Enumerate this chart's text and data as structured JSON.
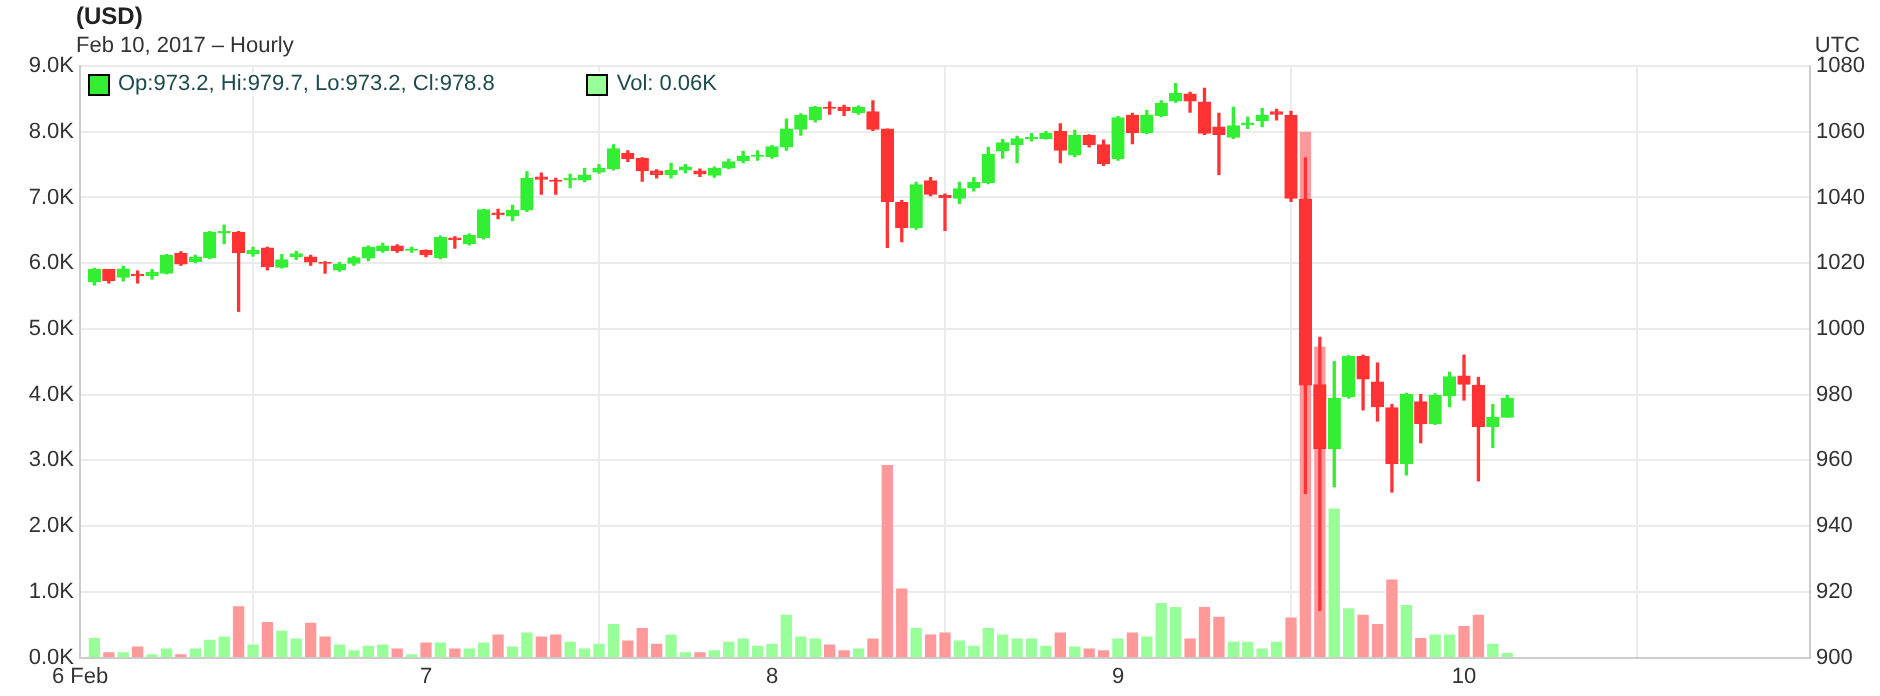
{
  "chart_data": {
    "type": "candlestick",
    "title": "(USD)",
    "subtitle": "Feb 10, 2017 – Hourly",
    "annotations": [
      "UTC"
    ],
    "x": [
      "2017-02-06T01:00",
      "2017-02-06T02:00",
      "2017-02-06T03:00",
      "2017-02-06T04:00",
      "2017-02-06T05:00",
      "2017-02-06T06:00",
      "2017-02-06T07:00",
      "2017-02-06T08:00",
      "2017-02-06T09:00",
      "2017-02-06T10:00",
      "2017-02-06T11:00",
      "2017-02-06T12:00",
      "2017-02-06T13:00",
      "2017-02-06T14:00",
      "2017-02-06T15:00",
      "2017-02-06T16:00",
      "2017-02-06T17:00",
      "2017-02-06T18:00",
      "2017-02-06T19:00",
      "2017-02-06T20:00",
      "2017-02-06T21:00",
      "2017-02-06T22:00",
      "2017-02-06T23:00",
      "2017-02-07T00:00",
      "2017-02-07T01:00",
      "2017-02-07T02:00",
      "2017-02-07T03:00",
      "2017-02-07T04:00",
      "2017-02-07T05:00",
      "2017-02-07T06:00",
      "2017-02-07T07:00",
      "2017-02-07T08:00",
      "2017-02-07T09:00",
      "2017-02-07T10:00",
      "2017-02-07T11:00",
      "2017-02-07T12:00",
      "2017-02-07T13:00",
      "2017-02-07T14:00",
      "2017-02-07T15:00",
      "2017-02-07T16:00",
      "2017-02-07T17:00",
      "2017-02-07T18:00",
      "2017-02-07T19:00",
      "2017-02-07T20:00",
      "2017-02-07T21:00",
      "2017-02-07T22:00",
      "2017-02-07T23:00",
      "2017-02-08T00:00",
      "2017-02-08T01:00",
      "2017-02-08T02:00",
      "2017-02-08T03:00",
      "2017-02-08T04:00",
      "2017-02-08T05:00",
      "2017-02-08T06:00",
      "2017-02-08T07:00",
      "2017-02-08T08:00",
      "2017-02-08T09:00",
      "2017-02-08T10:00",
      "2017-02-08T11:00",
      "2017-02-08T12:00",
      "2017-02-08T13:00",
      "2017-02-08T14:00",
      "2017-02-08T15:00",
      "2017-02-08T16:00",
      "2017-02-08T17:00",
      "2017-02-08T18:00",
      "2017-02-08T19:00",
      "2017-02-08T20:00",
      "2017-02-08T21:00",
      "2017-02-08T22:00",
      "2017-02-08T23:00",
      "2017-02-09T00:00",
      "2017-02-09T01:00",
      "2017-02-09T02:00",
      "2017-02-09T03:00",
      "2017-02-09T04:00",
      "2017-02-09T05:00",
      "2017-02-09T06:00",
      "2017-02-09T07:00",
      "2017-02-09T08:00",
      "2017-02-09T09:00",
      "2017-02-09T10:00",
      "2017-02-09T11:00",
      "2017-02-09T12:00",
      "2017-02-09T13:00",
      "2017-02-09T14:00",
      "2017-02-09T15:00",
      "2017-02-09T16:00",
      "2017-02-09T17:00",
      "2017-02-09T18:00",
      "2017-02-09T19:00",
      "2017-02-09T20:00",
      "2017-02-09T21:00",
      "2017-02-09T22:00",
      "2017-02-09T23:00",
      "2017-02-10T00:00",
      "2017-02-10T01:00",
      "2017-02-10T02:00",
      "2017-02-10T03:00"
    ],
    "xlim": [
      "2017-02-06",
      "2017-02-11"
    ],
    "xticks": [
      {
        "value": "2017-02-06",
        "label": "6 Feb"
      },
      {
        "value": "2017-02-07",
        "label": "7"
      },
      {
        "value": "2017-02-08",
        "label": "8"
      },
      {
        "value": "2017-02-09",
        "label": "9"
      },
      {
        "value": "2017-02-10",
        "label": "10"
      }
    ],
    "ylim": [
      0,
      9
    ],
    "yticks": [
      {
        "value": 0,
        "label": "0.0K"
      },
      {
        "value": 1,
        "label": "1.0K"
      },
      {
        "value": 2,
        "label": "2.0K"
      },
      {
        "value": 3,
        "label": "3.0K"
      },
      {
        "value": 4,
        "label": "4.0K"
      },
      {
        "value": 5,
        "label": "5.0K"
      },
      {
        "value": 6,
        "label": "6.0K"
      },
      {
        "value": 7,
        "label": "7.0K"
      },
      {
        "value": 8,
        "label": "8.0K"
      },
      {
        "value": 9,
        "label": "9.0K"
      }
    ],
    "y2lim": [
      900,
      1080
    ],
    "y2ticks": [
      900,
      920,
      940,
      960,
      980,
      1000,
      1020,
      1040,
      1060,
      1080
    ],
    "grid": true,
    "legend": "top left",
    "series": [
      {
        "type": "candlestick",
        "name": "Op:973.2, Hi:979.7, Lo:973.2, Cl:978.8",
        "axis": "y2",
        "color": "#33ee33",
        "colors": [
          "#33ee33",
          "#ff3333",
          "#33ee33",
          "#ff3333",
          "#33ee33",
          "#33ee33",
          "#ff3333",
          "#33ee33",
          "#33ee33",
          "#33ee33",
          "#ff3333",
          "#33ee33",
          "#ff3333",
          "#33ee33",
          "#33ee33",
          "#ff3333",
          "#ff3333",
          "#33ee33",
          "#33ee33",
          "#33ee33",
          "#33ee33",
          "#ff3333",
          "#33ee33",
          "#ff3333",
          "#33ee33",
          "#ff3333",
          "#33ee33",
          "#33ee33",
          "#ff3333",
          "#33ee33",
          "#33ee33",
          "#ff3333",
          "#ff3333",
          "#33ee33",
          "#33ee33",
          "#33ee33",
          "#33ee33",
          "#ff3333",
          "#ff3333",
          "#ff3333",
          "#33ee33",
          "#33ee33",
          "#ff3333",
          "#33ee33",
          "#33ee33",
          "#33ee33",
          "#33ee33",
          "#33ee33",
          "#33ee33",
          "#33ee33",
          "#33ee33",
          "#ff3333",
          "#ff3333",
          "#33ee33",
          "#ff3333",
          "#ff3333",
          "#ff3333",
          "#33ee33",
          "#ff3333",
          "#ff3333",
          "#33ee33",
          "#33ee33",
          "#33ee33",
          "#33ee33",
          "#33ee33",
          "#33ee33",
          "#33ee33",
          "#ff3333",
          "#33ee33",
          "#ff3333",
          "#ff3333",
          "#33ee33",
          "#ff3333",
          "#33ee33",
          "#33ee33",
          "#33ee33",
          "#ff3333",
          "#ff3333",
          "#ff3333",
          "#33ee33",
          "#33ee33",
          "#33ee33",
          "#ff3333",
          "#ff3333",
          "#ff3333",
          "#ff3333",
          "#33ee33",
          "#33ee33",
          "#ff3333",
          "#ff3333",
          "#ff3333",
          "#33ee33",
          "#ff3333",
          "#33ee33",
          "#33ee33",
          "#ff3333",
          "#ff3333",
          "#33ee33",
          "#33ee33"
        ],
        "ohlc": [
          [
            1014.4,
            1018.4,
            1013.4,
            1018
          ],
          [
            1018,
            1018,
            1014,
            1014.8
          ],
          [
            1015.8,
            1019,
            1014.6,
            1018.2
          ],
          [
            1016.6,
            1017.6,
            1014,
            1016.2
          ],
          [
            1016.2,
            1018,
            1015.2,
            1017.2
          ],
          [
            1017,
            1022.6,
            1016.8,
            1022.4
          ],
          [
            1023,
            1023.4,
            1019.4,
            1019.8
          ],
          [
            1020.6,
            1022.4,
            1020.2,
            1021.8
          ],
          [
            1021.8,
            1029.6,
            1021.4,
            1029.4
          ],
          [
            1029.2,
            1031.6,
            1026,
            1029.6
          ],
          [
            1029.4,
            1029.6,
            1005.4,
            1023.2
          ],
          [
            1023,
            1024.8,
            1022.2,
            1023.8
          ],
          [
            1024.6,
            1024.8,
            1018,
            1019
          ],
          [
            1018.8,
            1022.6,
            1018.6,
            1021
          ],
          [
            1022,
            1023.6,
            1021.2,
            1022.8
          ],
          [
            1021.8,
            1022.4,
            1019.4,
            1020.4
          ],
          [
            1020.2,
            1020.4,
            1017,
            1020
          ],
          [
            1018,
            1020.2,
            1017.6,
            1019.6
          ],
          [
            1020,
            1022,
            1019.4,
            1021.6
          ],
          [
            1021.6,
            1025.2,
            1020.8,
            1024.8
          ],
          [
            1023.8,
            1026,
            1023.4,
            1025.2
          ],
          [
            1025.2,
            1025.6,
            1023.4,
            1023.8
          ],
          [
            1024,
            1024.8,
            1023.4,
            1024.2
          ],
          [
            1023.8,
            1024,
            1022,
            1022.6
          ],
          [
            1021.8,
            1028.2,
            1021.4,
            1027.8
          ],
          [
            1027.6,
            1028,
            1024.6,
            1027.2
          ],
          [
            1026,
            1028.8,
            1025.6,
            1028.4
          ],
          [
            1027.8,
            1036.4,
            1027.4,
            1036.2
          ],
          [
            1035.2,
            1036.4,
            1033.6,
            1034.8
          ],
          [
            1034.4,
            1037.6,
            1033,
            1036
          ],
          [
            1036.2,
            1047.8,
            1035.8,
            1045.8
          ],
          [
            1046.2,
            1047.4,
            1041,
            1045.6
          ],
          [
            1045.2,
            1045.8,
            1041,
            1045
          ],
          [
            1045.4,
            1047,
            1043,
            1045.8
          ],
          [
            1045.4,
            1048.8,
            1044.8,
            1046.8
          ],
          [
            1047.8,
            1050,
            1047.4,
            1048.8
          ],
          [
            1048.8,
            1056,
            1048.4,
            1054.8
          ],
          [
            1053.4,
            1054.2,
            1051,
            1051.8
          ],
          [
            1051.8,
            1052,
            1045,
            1048.2
          ],
          [
            1048,
            1048.4,
            1046,
            1047
          ],
          [
            1047,
            1050.4,
            1046,
            1048.2
          ],
          [
            1048.4,
            1050,
            1047.6,
            1049.2
          ],
          [
            1048,
            1048.6,
            1046.4,
            1047.2
          ],
          [
            1046.8,
            1049.2,
            1046.2,
            1048.8
          ],
          [
            1049,
            1051.6,
            1048.8,
            1050.8
          ],
          [
            1051.2,
            1054,
            1050.6,
            1052.6
          ],
          [
            1052.6,
            1054.2,
            1051.4,
            1052.8
          ],
          [
            1052.4,
            1055.8,
            1052,
            1055.4
          ],
          [
            1055.4,
            1063.8,
            1054.4,
            1060.8
          ],
          [
            1060.8,
            1065.4,
            1059,
            1065
          ],
          [
            1063.8,
            1067.6,
            1063,
            1067.4
          ],
          [
            1067.4,
            1069,
            1065.4,
            1067.2
          ],
          [
            1067.4,
            1068,
            1065,
            1066.4
          ],
          [
            1065.8,
            1067.8,
            1065.4,
            1067.4
          ],
          [
            1066,
            1069.4,
            1060.4,
            1060.8
          ],
          [
            1060.8,
            1060.8,
            1024.8,
            1038.8
          ],
          [
            1038.4,
            1039,
            1026.6,
            1030.8
          ],
          [
            1030.8,
            1044.6,
            1030.4,
            1043.8
          ],
          [
            1045,
            1046,
            1040.6,
            1041
          ],
          [
            1040.6,
            1041,
            1030,
            1040
          ],
          [
            1039.8,
            1044.6,
            1038.2,
            1042.6
          ],
          [
            1043,
            1046,
            1042,
            1044.6
          ],
          [
            1044.6,
            1055.2,
            1044.2,
            1053
          ],
          [
            1054.2,
            1057.6,
            1052,
            1056.6
          ],
          [
            1056.2,
            1058.6,
            1050.6,
            1057.8
          ],
          [
            1058,
            1059.4,
            1057.2,
            1058.2
          ],
          [
            1058,
            1060,
            1057.8,
            1059.4
          ],
          [
            1060,
            1062.4,
            1050.6,
            1054.4
          ],
          [
            1053,
            1060.4,
            1052.4,
            1058.8
          ],
          [
            1058.8,
            1059,
            1055.4,
            1056.2
          ],
          [
            1056,
            1057.4,
            1049.8,
            1050.4
          ],
          [
            1051.8,
            1064.6,
            1051.4,
            1064.2
          ],
          [
            1065,
            1065.6,
            1056.4,
            1059.8
          ],
          [
            1059.8,
            1066.4,
            1059.4,
            1065
          ],
          [
            1065,
            1069.4,
            1064.6,
            1068.6
          ],
          [
            1069.4,
            1074.6,
            1069,
            1071.6
          ],
          [
            1071.4,
            1072,
            1066,
            1069.4
          ],
          [
            1069,
            1073.2,
            1059.2,
            1059.6
          ],
          [
            1061.4,
            1065.6,
            1047,
            1059.2
          ],
          [
            1058.4,
            1067.4,
            1058,
            1061.8
          ],
          [
            1062.2,
            1064.4,
            1061,
            1062.6
          ],
          [
            1063.4,
            1067,
            1061.6,
            1065
          ],
          [
            1066,
            1066.8,
            1063.6,
            1065.4
          ],
          [
            1065,
            1066.2,
            1038.8,
            1039.8
          ],
          [
            1039.4,
            1052,
            950,
            983
          ],
          [
            983,
            997.4,
            914.4,
            963.6
          ],
          [
            963.6,
            990,
            952,
            978.8
          ],
          [
            979.4,
            991.8,
            979,
            991.6
          ],
          [
            991.6,
            992,
            975.4,
            984.8
          ],
          [
            983.8,
            989.6,
            972,
            976.4
          ],
          [
            976,
            977,
            950.4,
            959
          ],
          [
            959,
            980.4,
            955.6,
            980
          ],
          [
            977.8,
            980,
            965.4,
            971.2
          ],
          [
            971.2,
            980.2,
            971,
            979.8
          ],
          [
            979.8,
            986.8,
            976.4,
            985.4
          ],
          [
            985.6,
            992,
            978.4,
            983.2
          ],
          [
            982.8,
            985.2,
            953.8,
            970.4
          ],
          [
            970.4,
            977,
            964,
            973
          ],
          [
            973.2,
            979.7,
            973.2,
            978.8
          ]
        ]
      },
      {
        "type": "bar",
        "name": "Vol: 0.06K",
        "color": "#99ff99",
        "colors": [
          "#99ff99",
          "#ff9999",
          "#99ff99",
          "#ff9999",
          "#99ff99",
          "#99ff99",
          "#ff9999",
          "#99ff99",
          "#99ff99",
          "#99ff99",
          "#ff9999",
          "#99ff99",
          "#ff9999",
          "#99ff99",
          "#99ff99",
          "#ff9999",
          "#ff9999",
          "#99ff99",
          "#99ff99",
          "#99ff99",
          "#99ff99",
          "#ff9999",
          "#99ff99",
          "#ff9999",
          "#99ff99",
          "#ff9999",
          "#99ff99",
          "#99ff99",
          "#ff9999",
          "#99ff99",
          "#99ff99",
          "#ff9999",
          "#ff9999",
          "#99ff99",
          "#99ff99",
          "#99ff99",
          "#99ff99",
          "#ff9999",
          "#ff9999",
          "#ff9999",
          "#99ff99",
          "#99ff99",
          "#ff9999",
          "#99ff99",
          "#99ff99",
          "#99ff99",
          "#99ff99",
          "#99ff99",
          "#99ff99",
          "#99ff99",
          "#99ff99",
          "#ff9999",
          "#ff9999",
          "#99ff99",
          "#ff9999",
          "#ff9999",
          "#ff9999",
          "#99ff99",
          "#ff9999",
          "#ff9999",
          "#99ff99",
          "#99ff99",
          "#99ff99",
          "#99ff99",
          "#99ff99",
          "#99ff99",
          "#99ff99",
          "#ff9999",
          "#99ff99",
          "#ff9999",
          "#ff9999",
          "#99ff99",
          "#ff9999",
          "#99ff99",
          "#99ff99",
          "#99ff99",
          "#ff9999",
          "#ff9999",
          "#ff9999",
          "#99ff99",
          "#99ff99",
          "#99ff99",
          "#99ff99",
          "#ff9999",
          "#ff9999",
          "#ff9999",
          "#99ff99",
          "#99ff99",
          "#ff9999",
          "#ff9999",
          "#ff9999",
          "#99ff99",
          "#ff9999",
          "#99ff99",
          "#99ff99",
          "#ff9999",
          "#ff9999",
          "#99ff99",
          "#99ff99"
        ],
        "values": [
          0.29,
          0.07,
          0.07,
          0.16,
          0.04,
          0.13,
          0.04,
          0.13,
          0.26,
          0.31,
          0.77,
          0.19,
          0.53,
          0.4,
          0.28,
          0.52,
          0.31,
          0.19,
          0.1,
          0.17,
          0.19,
          0.13,
          0.04,
          0.22,
          0.22,
          0.13,
          0.13,
          0.22,
          0.34,
          0.16,
          0.37,
          0.31,
          0.34,
          0.23,
          0.13,
          0.2,
          0.5,
          0.25,
          0.44,
          0.2,
          0.34,
          0.07,
          0.07,
          0.1,
          0.23,
          0.28,
          0.17,
          0.2,
          0.64,
          0.31,
          0.28,
          0.19,
          0.1,
          0.13,
          0.28,
          2.92,
          1.04,
          0.44,
          0.34,
          0.37,
          0.25,
          0.17,
          0.44,
          0.34,
          0.28,
          0.28,
          0.17,
          0.37,
          0.16,
          0.13,
          0.1,
          0.28,
          0.37,
          0.31,
          0.82,
          0.76,
          0.28,
          0.76,
          0.61,
          0.23,
          0.23,
          0.13,
          0.23,
          0.6,
          7.99,
          4.72,
          2.26,
          0.74,
          0.64,
          0.5,
          1.18,
          0.79,
          0.29,
          0.34,
          0.34,
          0.47,
          0.64,
          0.2,
          0.06
        ]
      }
    ]
  }
}
